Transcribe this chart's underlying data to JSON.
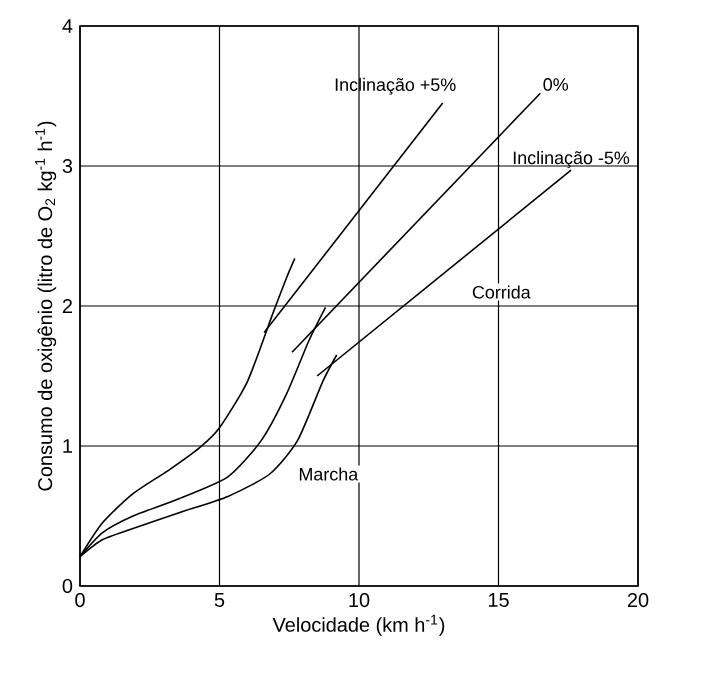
{
  "chart_data": {
    "type": "line",
    "xlabel": "Velocidade (km h$^{-1}$)",
    "ylabel": "Consumo de oxigênio (litro de O$_{2}$ kg$^{-1}$ h$^{-1}$)",
    "xlim": [
      0,
      20
    ],
    "ylim": [
      0,
      4
    ],
    "xticks": [
      0,
      5,
      10,
      15,
      20
    ],
    "yticks": [
      0,
      1,
      2,
      3,
      4
    ],
    "grid": true,
    "marker": "none",
    "line_style": "solid",
    "series": [
      {
        "name": "Inclinação +5%",
        "color": "#000000",
        "x": [
          6.6,
          13.0
        ],
        "values": [
          1.81,
          3.45
        ]
      },
      {
        "name": "0%",
        "color": "#000000",
        "x": [
          7.6,
          16.5
        ],
        "values": [
          1.67,
          3.52
        ]
      },
      {
        "name": "Inclinação -5%",
        "color": "#000000",
        "x": [
          8.5,
          17.6
        ],
        "values": [
          1.5,
          2.97
        ]
      },
      {
        "color": "#000000",
        "x": [
          0,
          0.8,
          1.9,
          3.2,
          4.3,
          5.0,
          6.0,
          6.9,
          7.4,
          7.7
        ],
        "values": [
          0.21,
          0.45,
          0.66,
          0.83,
          0.99,
          1.13,
          1.46,
          1.94,
          2.2,
          2.34
        ]
      },
      {
        "color": "#000000",
        "x": [
          0,
          0.8,
          1.9,
          3.5,
          5.3,
          6.5,
          7.4,
          8.2,
          8.8
        ],
        "values": [
          0.21,
          0.38,
          0.5,
          0.62,
          0.78,
          1.04,
          1.37,
          1.75,
          1.99
        ]
      },
      {
        "color": "#000000",
        "x": [
          0,
          0.8,
          1.9,
          3.5,
          5.3,
          6.8,
          7.8,
          8.7,
          9.2
        ],
        "values": [
          0.21,
          0.33,
          0.41,
          0.52,
          0.64,
          0.8,
          1.04,
          1.46,
          1.65
        ]
      }
    ],
    "annotations": [
      "Corrida",
      "Marcha"
    ]
  }
}
